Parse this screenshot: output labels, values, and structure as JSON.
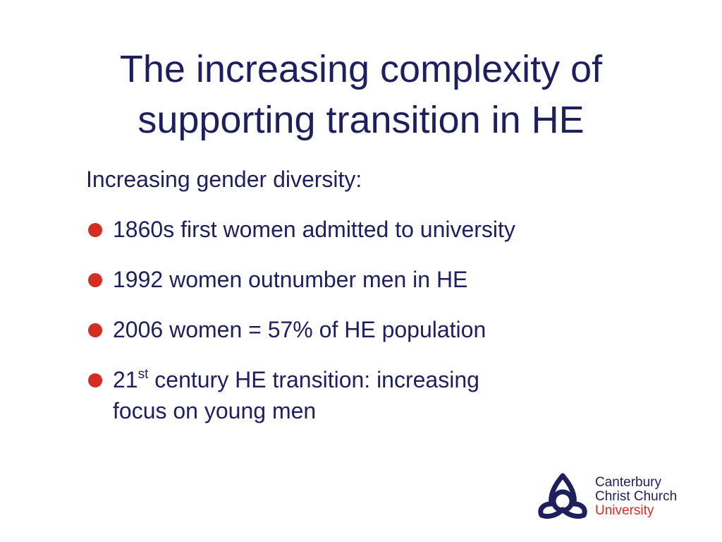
{
  "slide": {
    "title_line1": "The increasing complexity of",
    "title_line2": "supporting transition in HE",
    "intro": "Increasing gender diversity:",
    "bullets": [
      {
        "text": "1860s first women admitted to university"
      },
      {
        "text": "1992 women outnumber men in HE"
      },
      {
        "text": "2006 women = 57% of HE population"
      },
      {
        "prefix": "21",
        "sup": "st",
        "text": " century HE transition: increasing",
        "line2": "focus on young men"
      }
    ]
  },
  "logo": {
    "line1": "Canterbury",
    "line2": "Christ Church",
    "line3": "University"
  },
  "colors": {
    "text": "#1f1f5e",
    "bullet": "#d42d22",
    "logo_accent": "#d42d22"
  }
}
